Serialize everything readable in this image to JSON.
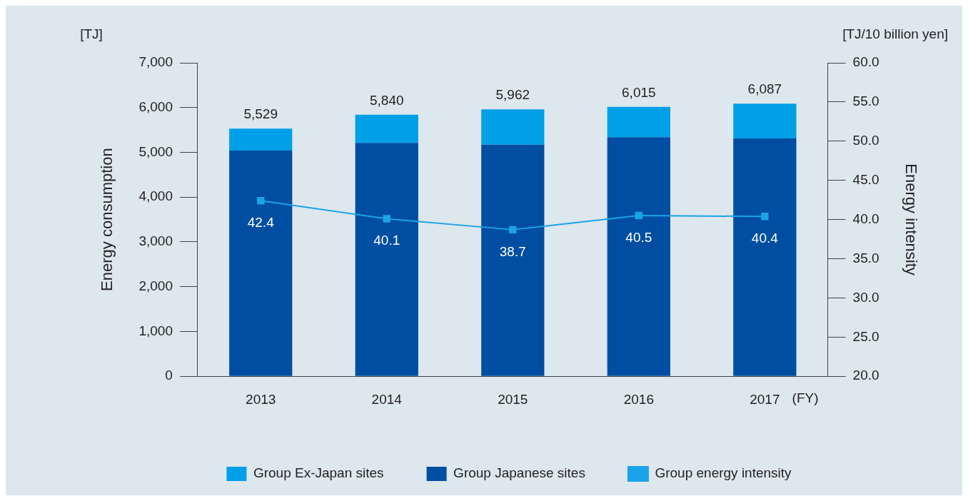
{
  "chart_data": {
    "type": "bar",
    "stacked": true,
    "categories": [
      "2013",
      "2014",
      "2015",
      "2016",
      "2017"
    ],
    "series": [
      {
        "name": "Group Japanese sites",
        "color": "#004ea2",
        "values": [
          5040,
          5210,
          5170,
          5340,
          5310
        ]
      },
      {
        "name": "Group Ex-Japan sites",
        "color": "#00a0e9",
        "values": [
          489,
          630,
          792,
          675,
          777
        ]
      },
      {
        "name": "Group energy intensity",
        "type": "line",
        "axis": "y2",
        "color": "#1aa3e8",
        "values": [
          42.4,
          40.1,
          38.7,
          40.5,
          40.4
        ],
        "value_labels": [
          "42.4",
          "40.1",
          "38.7",
          "40.5",
          "40.4"
        ]
      }
    ],
    "totals": [
      "5,529",
      "5,840",
      "5,962",
      "6,015",
      "6,087"
    ],
    "ylabel": "Energy consumption",
    "y2label": "Energy intensity",
    "xlabel": "(FY)",
    "annotations": [
      "[TJ]",
      "[TJ/10 billion yen]"
    ],
    "ylim": [
      0,
      7000
    ],
    "yticks": [
      {
        "value": 0,
        "label": "0"
      },
      {
        "value": 1000,
        "label": "1,000"
      },
      {
        "value": 2000,
        "label": "2,000"
      },
      {
        "value": 3000,
        "label": "3,000"
      },
      {
        "value": 4000,
        "label": "4,000"
      },
      {
        "value": 5000,
        "label": "5,000"
      },
      {
        "value": 6000,
        "label": "6,000"
      },
      {
        "value": 7000,
        "label": "7,000"
      }
    ],
    "y2lim": [
      20,
      60
    ],
    "y2ticks": [
      {
        "value": 20,
        "label": "20.0"
      },
      {
        "value": 25,
        "label": "25.0"
      },
      {
        "value": 30,
        "label": "30.0"
      },
      {
        "value": 35,
        "label": "35.0"
      },
      {
        "value": 40,
        "label": "40.0"
      },
      {
        "value": 45,
        "label": "45.0"
      },
      {
        "value": 50,
        "label": "50.0"
      },
      {
        "value": 55,
        "label": "55.0"
      },
      {
        "value": 60,
        "label": "60.0"
      }
    ],
    "grid": false,
    "legend": "bottom",
    "marker": "square",
    "line_style": "solid"
  }
}
